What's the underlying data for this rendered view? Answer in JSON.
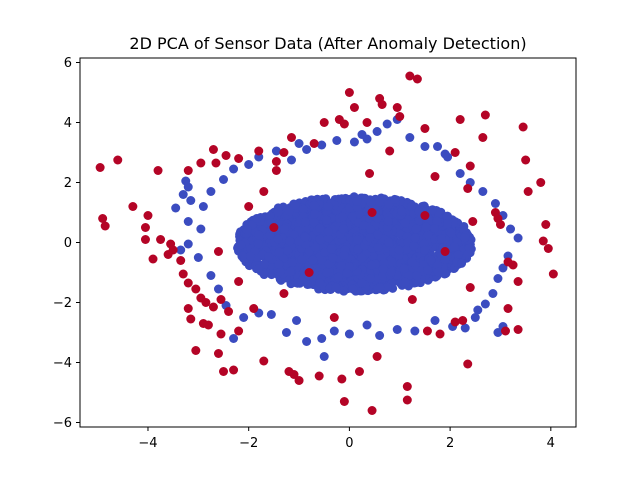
{
  "chart_data": {
    "type": "scatter",
    "title": "2D PCA of Sensor Data (After Anomaly Detection)",
    "xlabel": "",
    "ylabel": "",
    "xlim": [
      -5.35,
      4.5
    ],
    "ylim": [
      -6.15,
      6.15
    ],
    "xticks": [
      -4,
      -2,
      0,
      2,
      4
    ],
    "yticks": [
      -6,
      -4,
      -2,
      0,
      2,
      4,
      6
    ],
    "xtick_labels": [
      "−4",
      "−2",
      "0",
      "2",
      "4"
    ],
    "ytick_labels": [
      "−6",
      "−4",
      "−2",
      "0",
      "2",
      "4",
      "6"
    ],
    "grid": false,
    "legend": "none",
    "colors": {
      "normal": "#3b4cc0",
      "anomaly": "#b40426"
    },
    "series": [
      {
        "role": "normal",
        "color": "#3b4cc0",
        "core_ellipse": {
          "center": [
            0.1,
            -0.05
          ],
          "radii": [
            2.3,
            1.55
          ]
        },
        "points": [
          [
            -3.25,
            2.05
          ],
          [
            -3.2,
            1.85
          ],
          [
            -3.3,
            1.6
          ],
          [
            -3.45,
            1.15
          ],
          [
            -3.2,
            0.7
          ],
          [
            -2.95,
            0.45
          ],
          [
            -2.9,
            1.2
          ],
          [
            -2.75,
            1.7
          ],
          [
            -2.5,
            2.1
          ],
          [
            -2.3,
            2.45
          ],
          [
            -2.0,
            2.6
          ],
          [
            -1.8,
            2.85
          ],
          [
            -1.45,
            3.05
          ],
          [
            -1.15,
            2.75
          ],
          [
            -0.85,
            3.1
          ],
          [
            -0.55,
            3.25
          ],
          [
            -0.25,
            3.4
          ],
          [
            0.1,
            3.35
          ],
          [
            0.35,
            3.45
          ],
          [
            0.55,
            3.7
          ],
          [
            0.75,
            3.95
          ],
          [
            0.95,
            4.1
          ],
          [
            1.2,
            3.5
          ],
          [
            1.5,
            3.2
          ],
          [
            1.75,
            3.2
          ],
          [
            1.95,
            2.85
          ],
          [
            2.2,
            2.3
          ],
          [
            2.4,
            2.0
          ],
          [
            2.65,
            1.7
          ],
          [
            2.9,
            1.3
          ],
          [
            3.05,
            0.9
          ],
          [
            3.2,
            0.45
          ],
          [
            3.35,
            0.15
          ],
          [
            3.15,
            -0.45
          ],
          [
            3.05,
            -0.85
          ],
          [
            2.95,
            -1.2
          ],
          [
            2.85,
            -1.7
          ],
          [
            2.7,
            -2.05
          ],
          [
            2.5,
            -2.5
          ],
          [
            2.3,
            -2.85
          ],
          [
            3.05,
            -2.8
          ],
          [
            2.95,
            -3.0
          ],
          [
            2.05,
            -2.8
          ],
          [
            1.7,
            -2.6
          ],
          [
            1.3,
            -2.95
          ],
          [
            0.95,
            -2.9
          ],
          [
            0.6,
            -3.1
          ],
          [
            0.35,
            -2.75
          ],
          [
            0.0,
            -3.05
          ],
          [
            -0.3,
            -2.95
          ],
          [
            -0.55,
            -3.2
          ],
          [
            -0.85,
            -3.3
          ],
          [
            -1.05,
            -2.6
          ],
          [
            -1.25,
            -3.0
          ],
          [
            -1.55,
            -2.4
          ],
          [
            -1.8,
            -2.35
          ],
          [
            -2.1,
            -2.5
          ],
          [
            -2.45,
            -2.1
          ],
          [
            -2.6,
            -1.55
          ],
          [
            -2.75,
            -1.1
          ],
          [
            -3.0,
            -0.5
          ],
          [
            -3.35,
            -0.25
          ],
          [
            -3.2,
            -0.05
          ],
          [
            -2.3,
            -3.2
          ],
          [
            -0.5,
            -3.8
          ],
          [
            1.9,
            2.95
          ],
          [
            -1.0,
            3.3
          ],
          [
            0.25,
            3.6
          ],
          [
            -3.15,
            1.4
          ],
          [
            2.55,
            -2.25
          ]
        ]
      },
      {
        "role": "anomaly",
        "color": "#b40426",
        "points": [
          [
            -4.95,
            2.5
          ],
          [
            -4.6,
            2.75
          ],
          [
            -3.8,
            2.4
          ],
          [
            -4.3,
            1.2
          ],
          [
            -4.0,
            0.9
          ],
          [
            -4.05,
            0.5
          ],
          [
            -4.9,
            0.8
          ],
          [
            -4.85,
            0.55
          ],
          [
            -4.05,
            0.1
          ],
          [
            -3.9,
            -0.55
          ],
          [
            -3.75,
            0.1
          ],
          [
            -3.55,
            -0.05
          ],
          [
            -3.5,
            -0.25
          ],
          [
            -3.35,
            -0.6
          ],
          [
            -3.3,
            -1.05
          ],
          [
            -3.2,
            -1.35
          ],
          [
            -3.05,
            -1.55
          ],
          [
            -2.95,
            -1.85
          ],
          [
            -2.85,
            -2.0
          ],
          [
            -2.7,
            -2.15
          ],
          [
            -2.55,
            -1.9
          ],
          [
            -2.4,
            -2.3
          ],
          [
            -3.2,
            -2.2
          ],
          [
            -3.15,
            -2.55
          ],
          [
            -2.9,
            -2.7
          ],
          [
            -2.8,
            -2.75
          ],
          [
            -2.55,
            -3.05
          ],
          [
            -2.2,
            -2.95
          ],
          [
            -3.05,
            -3.6
          ],
          [
            -2.6,
            -3.7
          ],
          [
            -2.5,
            -4.3
          ],
          [
            -2.3,
            -4.25
          ],
          [
            -1.7,
            -3.95
          ],
          [
            -1.2,
            -4.3
          ],
          [
            -1.1,
            -4.4
          ],
          [
            -1.0,
            -4.6
          ],
          [
            -0.6,
            -4.45
          ],
          [
            -0.15,
            -4.55
          ],
          [
            0.2,
            -4.3
          ],
          [
            0.55,
            -3.8
          ],
          [
            1.15,
            -4.8
          ],
          [
            1.15,
            -5.25
          ],
          [
            0.45,
            -5.6
          ],
          [
            -0.1,
            -5.3
          ],
          [
            1.8,
            -3.05
          ],
          [
            2.35,
            -4.05
          ],
          [
            2.1,
            -2.65
          ],
          [
            2.25,
            -2.6
          ],
          [
            3.1,
            -2.95
          ],
          [
            3.35,
            -2.9
          ],
          [
            3.15,
            -2.2
          ],
          [
            3.35,
            -1.3
          ],
          [
            3.25,
            -0.75
          ],
          [
            3.15,
            -0.65
          ],
          [
            3.85,
            0.05
          ],
          [
            3.95,
            -0.2
          ],
          [
            4.05,
            -1.05
          ],
          [
            3.9,
            0.6
          ],
          [
            3.55,
            1.7
          ],
          [
            3.8,
            2.0
          ],
          [
            3.5,
            2.75
          ],
          [
            3.45,
            3.85
          ],
          [
            2.7,
            4.25
          ],
          [
            2.65,
            3.5
          ],
          [
            2.4,
            2.55
          ],
          [
            2.35,
            1.8
          ],
          [
            2.9,
            1.0
          ],
          [
            2.95,
            0.8
          ],
          [
            3.0,
            0.6
          ],
          [
            2.1,
            3.0
          ],
          [
            2.2,
            4.1
          ],
          [
            1.5,
            3.8
          ],
          [
            1.2,
            5.55
          ],
          [
            1.35,
            5.45
          ],
          [
            0.95,
            4.5
          ],
          [
            1.0,
            4.2
          ],
          [
            0.6,
            4.8
          ],
          [
            0.65,
            4.6
          ],
          [
            0.35,
            4.0
          ],
          [
            0.1,
            4.5
          ],
          [
            0.0,
            5.0
          ],
          [
            -0.2,
            4.1
          ],
          [
            -0.1,
            3.95
          ],
          [
            -0.5,
            4.0
          ],
          [
            -0.7,
            3.3
          ],
          [
            -1.15,
            3.5
          ],
          [
            -1.3,
            3.0
          ],
          [
            -1.8,
            3.05
          ],
          [
            -2.2,
            2.8
          ],
          [
            -2.45,
            2.9
          ],
          [
            -2.7,
            3.1
          ],
          [
            -2.65,
            2.65
          ],
          [
            -2.95,
            2.65
          ],
          [
            -3.2,
            2.4
          ],
          [
            -1.45,
            2.4
          ],
          [
            0.4,
            2.3
          ],
          [
            -2.0,
            1.2
          ],
          [
            -1.5,
            0.5
          ],
          [
            -2.2,
            -1.3
          ],
          [
            -1.3,
            -1.7
          ],
          [
            1.7,
            2.2
          ],
          [
            1.5,
            0.9
          ],
          [
            2.4,
            -1.5
          ],
          [
            1.25,
            -1.9
          ],
          [
            -0.3,
            -2.5
          ],
          [
            0.8,
            3.05
          ],
          [
            -1.9,
            -2.2
          ],
          [
            2.45,
            0.7
          ],
          [
            -2.6,
            -0.3
          ],
          [
            -0.8,
            -1.0
          ],
          [
            0.45,
            1.0
          ],
          [
            1.9,
            -0.3
          ],
          [
            -1.7,
            1.7
          ],
          [
            -3.6,
            -0.4
          ],
          [
            1.55,
            -2.95
          ],
          [
            -1.45,
            2.7
          ]
        ]
      }
    ]
  }
}
